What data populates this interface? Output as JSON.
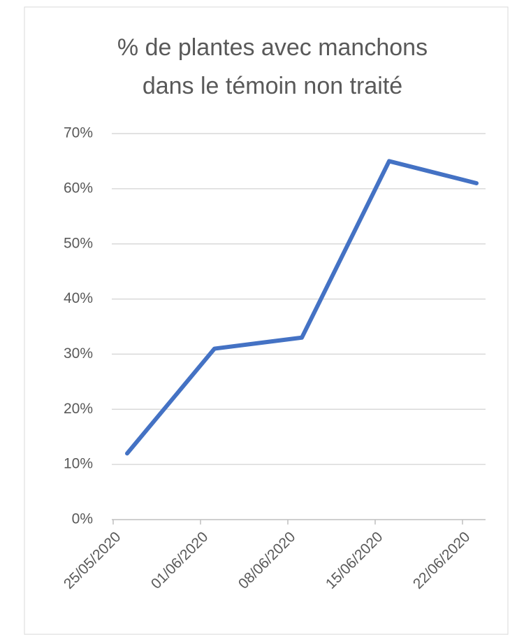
{
  "chart_data": {
    "type": "line",
    "title": [
      "% de plantes avec manchons",
      "dans le témoin non traité"
    ],
    "categories": [
      "25/05/2020",
      "01/06/2020",
      "08/06/2020",
      "15/06/2020",
      "22/06/2020"
    ],
    "values": [
      12,
      31,
      33,
      65,
      61
    ],
    "color": "#4472c4",
    "ylim": [
      0,
      70
    ],
    "yticks": [
      {
        "value": 0,
        "label": "0%"
      },
      {
        "value": 10,
        "label": "10%"
      },
      {
        "value": 20,
        "label": "20%"
      },
      {
        "value": 30,
        "label": "30%"
      },
      {
        "value": 40,
        "label": "40%"
      },
      {
        "value": 50,
        "label": "50%"
      },
      {
        "value": 60,
        "label": "60%"
      },
      {
        "value": 70,
        "label": "70%"
      }
    ],
    "grid": true
  }
}
